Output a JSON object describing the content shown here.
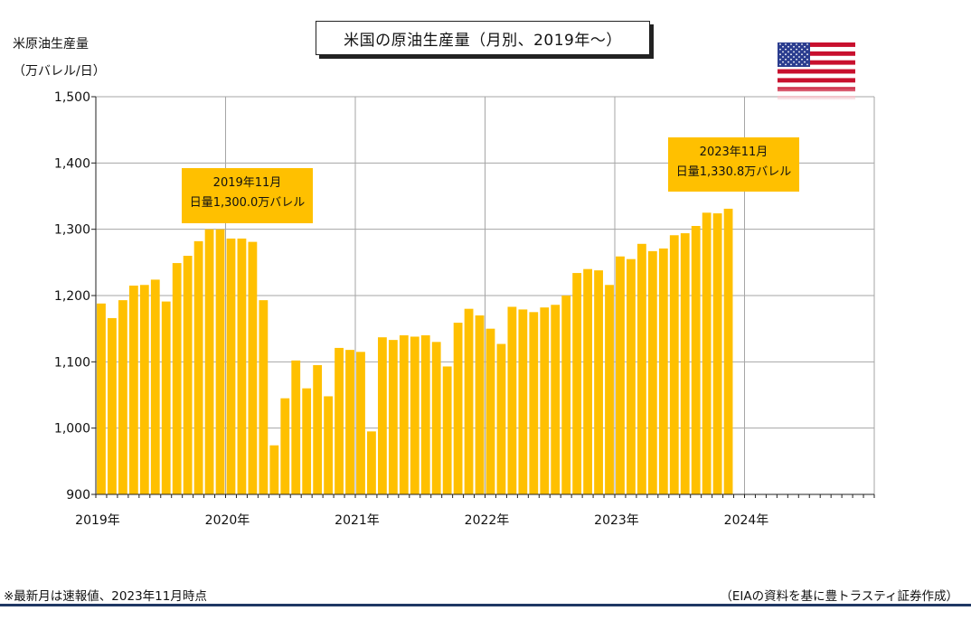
{
  "chart_data": {
    "type": "bar",
    "title": "米国の原油生産量（月別、2019年～）",
    "ylabel": "米原油生産量",
    "yunit": "（万バレル/日）",
    "ylim": [
      900,
      1500
    ],
    "yticks": [
      900,
      1000,
      1100,
      1200,
      1300,
      1400,
      1500
    ],
    "ytick_labels": [
      "900",
      "1,000",
      "1,100",
      "1,200",
      "1,300",
      "1,400",
      "1,500"
    ],
    "xtick_labels": [
      "2019年",
      "2020年",
      "2021年",
      "2022年",
      "2023年",
      "2024年"
    ],
    "total_months": 72,
    "grid": true,
    "bar_color": "#ffc000",
    "values": [
      1188,
      1166,
      1193,
      1215,
      1216,
      1224,
      1191,
      1249,
      1260,
      1282,
      1300,
      1300,
      1286,
      1286,
      1281,
      1193,
      974,
      1045,
      1102,
      1060,
      1095,
      1048,
      1121,
      1118,
      1115,
      995,
      1137,
      1133,
      1140,
      1138,
      1140,
      1130,
      1093,
      1159,
      1180,
      1170,
      1150,
      1127,
      1183,
      1179,
      1175,
      1182,
      1186,
      1200,
      1234,
      1240,
      1238,
      1216,
      1259,
      1255,
      1278,
      1267,
      1271,
      1291,
      1294,
      1305,
      1325,
      1324,
      1331
    ],
    "annotations": [
      {
        "line1": "2019年11月",
        "line2": "日量1,300.0万バレル"
      },
      {
        "line1": "2023年11月",
        "line2": "日量1,330.8万バレル"
      }
    ]
  },
  "notes": {
    "left": "※最新月は速報値、2023年11月時点",
    "right": "（EIAの資料を基に豊トラスティ証券作成）"
  },
  "colors": {
    "bar": "#ffc000",
    "grid": "#a6a6a6",
    "rule": "#1f3864"
  },
  "icons": {
    "flag": "us-flag-icon"
  }
}
